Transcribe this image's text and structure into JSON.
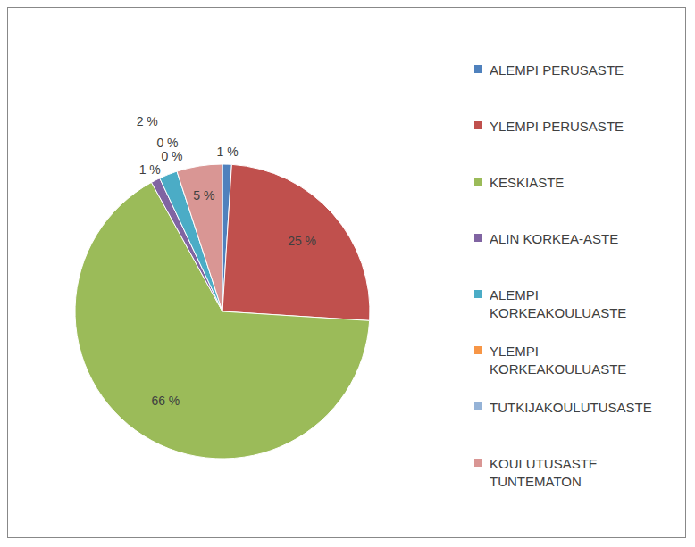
{
  "chart_data": {
    "type": "pie",
    "categories": [
      "ALEMPI PERUSASTE",
      "YLEMPI PERUSASTE",
      "KESKIASTE",
      "ALIN KORKEA-ASTE",
      "ALEMPI KORKEAKOULUASTE",
      "YLEMPI KORKEAKOULUASTE",
      "TUTKIJAKOULUTUSASTE",
      "KOULUTUSASTE TUNTEMATON"
    ],
    "values": [
      1,
      25,
      66,
      1,
      2,
      0,
      0,
      5
    ],
    "value_labels": [
      "1 %",
      "25 %",
      "66 %",
      "1 %",
      "2 %",
      "0 %",
      "0 %",
      "5 %"
    ],
    "colors": [
      "#4f81bd",
      "#c0504d",
      "#9bbb59",
      "#8064a2",
      "#4bacc6",
      "#f79646",
      "#95b3d7",
      "#d99694"
    ],
    "data_labels": true
  }
}
